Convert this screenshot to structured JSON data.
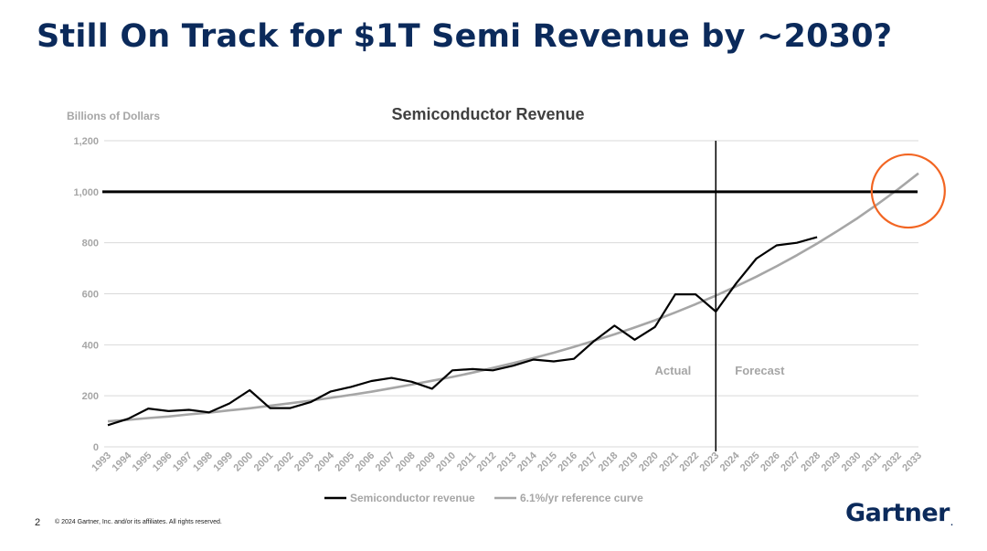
{
  "slide": {
    "title": "Still On Track for $1T Semi Revenue by ~2030?",
    "page_number": "2",
    "copyright": "© 2024 Gartner, Inc. and/or its affiliates. All rights reserved.",
    "logo_text": "Gartner",
    "logo_mark": "."
  },
  "colors": {
    "title": "#0b2a5b",
    "revenue_line": "#000000",
    "reference_curve": "#a6a6a6",
    "grid": "#d9d9d9",
    "axis_text": "#a6a6a6",
    "highlight_circle": "#f26522"
  },
  "chart_data": {
    "type": "line",
    "title": "Semiconductor Revenue",
    "ylabel": "Billions of Dollars",
    "xlabel": "",
    "ylim": [
      0,
      1200
    ],
    "yticks": [
      0,
      200,
      400,
      600,
      800,
      1000,
      1200
    ],
    "ytick_labels": [
      "0",
      "200",
      "400",
      "600",
      "800",
      "1,000",
      "1,200"
    ],
    "categories": [
      "1993",
      "1994",
      "1995",
      "1996",
      "1997",
      "1998",
      "1999",
      "2000",
      "2001",
      "2002",
      "2003",
      "2004",
      "2005",
      "2006",
      "2007",
      "2008",
      "2009",
      "2010",
      "2011",
      "2012",
      "2013",
      "2014",
      "2015",
      "2016",
      "2017",
      "2018",
      "2019",
      "2020",
      "2021",
      "2022",
      "2023",
      "2024",
      "2025",
      "2026",
      "2027",
      "2028",
      "2029",
      "2030",
      "2031",
      "2032",
      "2033"
    ],
    "series": [
      {
        "name": "Semiconductor revenue",
        "values": [
          85,
          110,
          150,
          140,
          145,
          135,
          170,
          222,
          152,
          152,
          175,
          217,
          235,
          258,
          270,
          255,
          228,
          300,
          305,
          300,
          318,
          342,
          335,
          345,
          415,
          475,
          420,
          470,
          598,
          598,
          530,
          640,
          738,
          790,
          800,
          822,
          null,
          null,
          null,
          null,
          null
        ]
      },
      {
        "name": "6.1%/yr reference curve",
        "values": [
          100,
          106,
          113,
          119,
          127,
          134,
          143,
          151,
          161,
          171,
          181,
          192,
          204,
          216,
          230,
          244,
          259,
          274,
          291,
          309,
          328,
          348,
          369,
          392,
          416,
          441,
          468,
          496,
          527,
          559,
          593,
          629,
          667,
          708,
          751,
          797,
          846,
          897,
          952,
          1010,
          1072
        ]
      }
    ],
    "reference_line": {
      "value": 1000
    },
    "divider": {
      "at": "2023",
      "left_label": "Actual",
      "right_label": "Forecast"
    },
    "highlight": {
      "at": "2032",
      "value": 1010
    },
    "legend": {
      "position": "bottom",
      "entries": [
        "Semiconductor revenue",
        "6.1%/yr reference curve"
      ]
    }
  }
}
